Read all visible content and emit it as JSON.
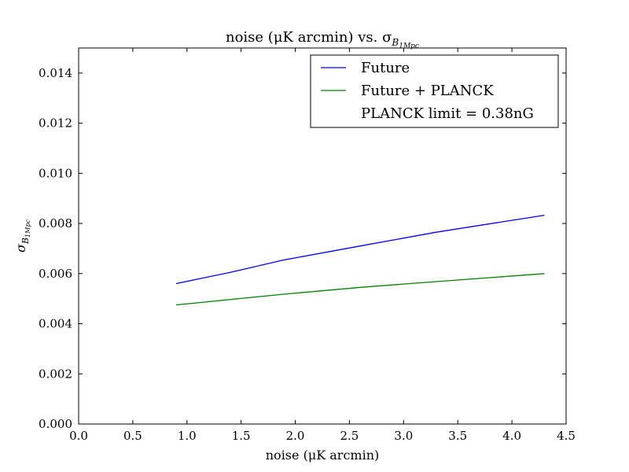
{
  "chart_data": {
    "type": "line",
    "title": "noise (μK arcmin) vs. σ",
    "title_sub": "B",
    "title_subsub": "1Mpc",
    "xlabel": "noise (μK arcmin)",
    "ylabel": "σ",
    "ylabel_sub": "B",
    "ylabel_subsub": "1Mpc",
    "xlim": [
      0.0,
      4.5
    ],
    "ylim": [
      0.0,
      0.015
    ],
    "xticks": [
      "0.0",
      "0.5",
      "1.0",
      "1.5",
      "2.0",
      "2.5",
      "3.0",
      "3.5",
      "4.0",
      "4.5"
    ],
    "yticks": [
      "0.000",
      "0.002",
      "0.004",
      "0.006",
      "0.008",
      "0.010",
      "0.012",
      "0.014"
    ],
    "grid": false,
    "legend_position": "top-right",
    "legend_entries": [
      "Future",
      "Future + PLANCK",
      "PLANCK limit = 0.38nG"
    ],
    "series": [
      {
        "name": "Future",
        "color": "#0000ff",
        "x": [
          0.9,
          1.4,
          1.9,
          2.6,
          3.3,
          4.3
        ],
        "y": [
          0.0056,
          0.00605,
          0.00655,
          0.0071,
          0.00765,
          0.00833
        ]
      },
      {
        "name": "Future + PLANCK",
        "color": "#008000",
        "x": [
          0.9,
          1.9,
          2.6,
          3.3,
          4.3
        ],
        "y": [
          0.00475,
          0.00518,
          0.00545,
          0.00568,
          0.006
        ]
      }
    ]
  }
}
